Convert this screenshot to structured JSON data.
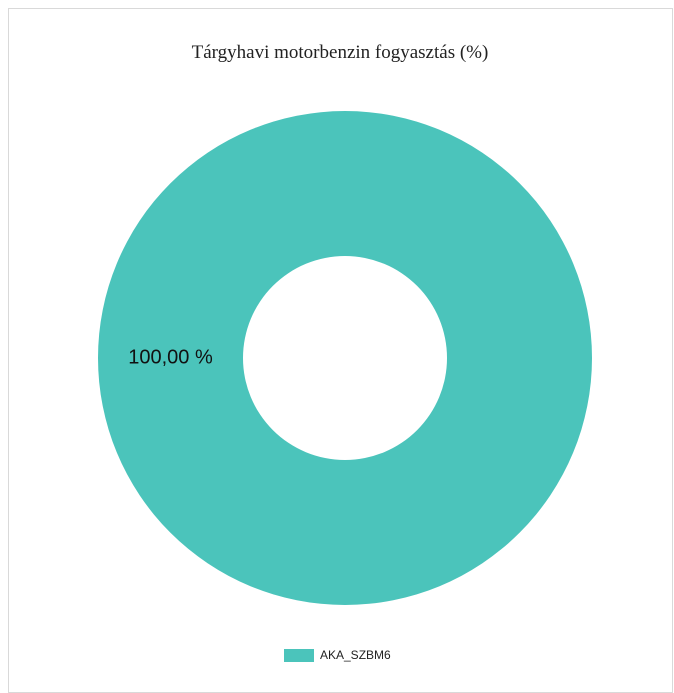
{
  "chart_data": {
    "type": "donut",
    "title": "Tárgyhavi motorbenzin fogyasztás (%)",
    "categories": [
      "AKA_SZBM6"
    ],
    "values": [
      100
    ],
    "value_labels": [
      "100,00 %"
    ],
    "colors": [
      "#4bc4bb"
    ],
    "legend": "bottom"
  }
}
